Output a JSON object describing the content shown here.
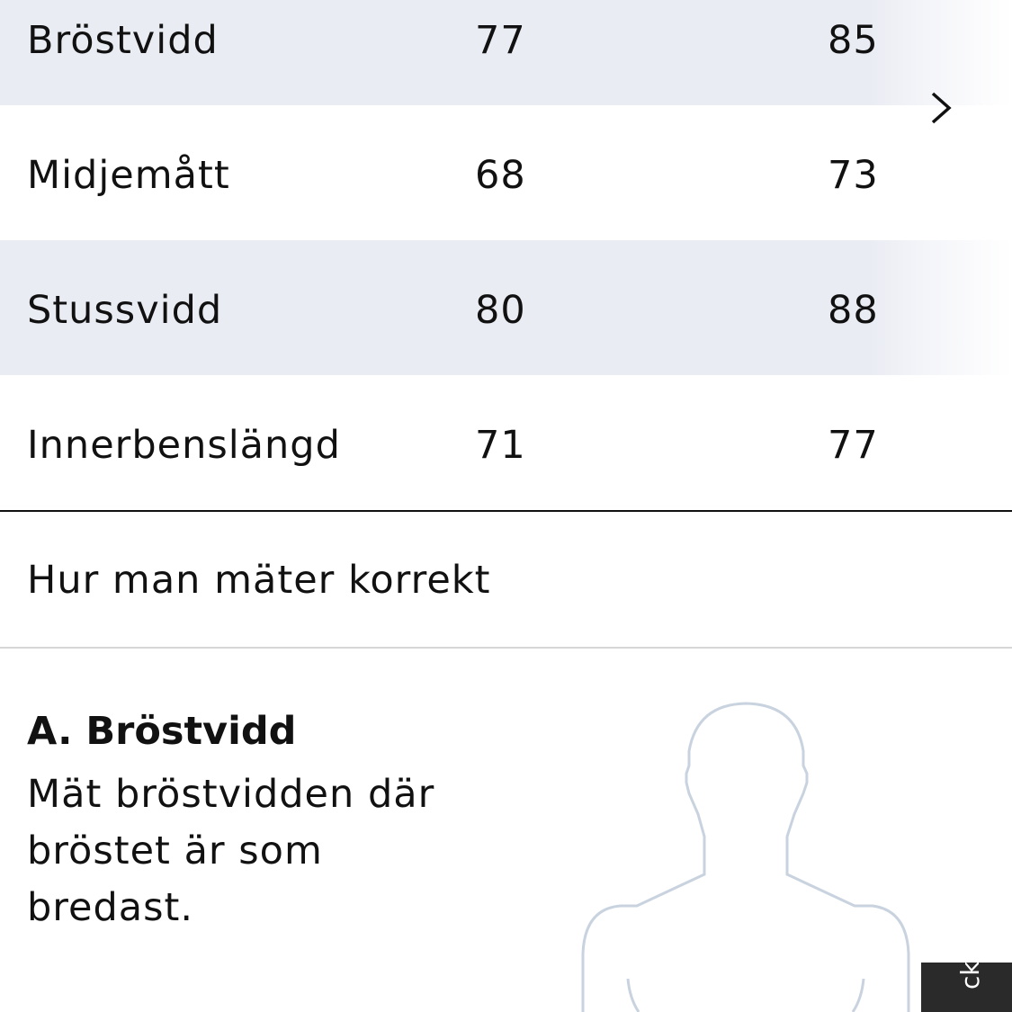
{
  "size_table": {
    "rows": [
      {
        "label": "Bröstvidd",
        "values": [
          "77",
          "85"
        ]
      },
      {
        "label": "Midjemått",
        "values": [
          "68",
          "73"
        ]
      },
      {
        "label": "Stussvidd",
        "values": [
          "80",
          "88"
        ]
      },
      {
        "label": "Innerbenslängd",
        "values": [
          "71",
          "77"
        ]
      }
    ],
    "scroll_icon": "chevron-right-icon"
  },
  "how_to_measure": {
    "heading": "Hur man mäter korrekt",
    "item_title": "A. Bröstvidd",
    "item_description": "Mät bröstvidden där bröstet är som bredast."
  },
  "feedback_tab": {
    "label": "ck"
  },
  "colors": {
    "row_shade": "#e9ecf3",
    "figure_outline": "#c9d3df",
    "feedback_bg": "#2a2a2a"
  }
}
